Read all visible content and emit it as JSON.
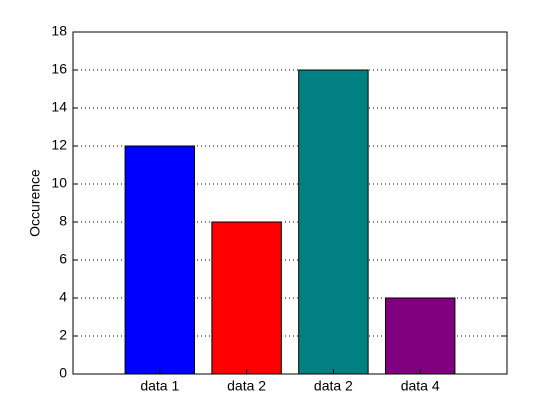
{
  "chart_data": {
    "type": "bar",
    "y_label": "Occurence",
    "categories": [
      "data 1",
      "data 2",
      "data 2",
      "data 4"
    ],
    "values": [
      12,
      8,
      16,
      4
    ],
    "colors": [
      "#0000ff",
      "#ff0000",
      "#008080",
      "#800080"
    ],
    "ylim": [
      0,
      18
    ],
    "yticks": [
      0,
      2,
      4,
      6,
      8,
      10,
      12,
      14,
      16,
      18
    ],
    "grid": true
  }
}
